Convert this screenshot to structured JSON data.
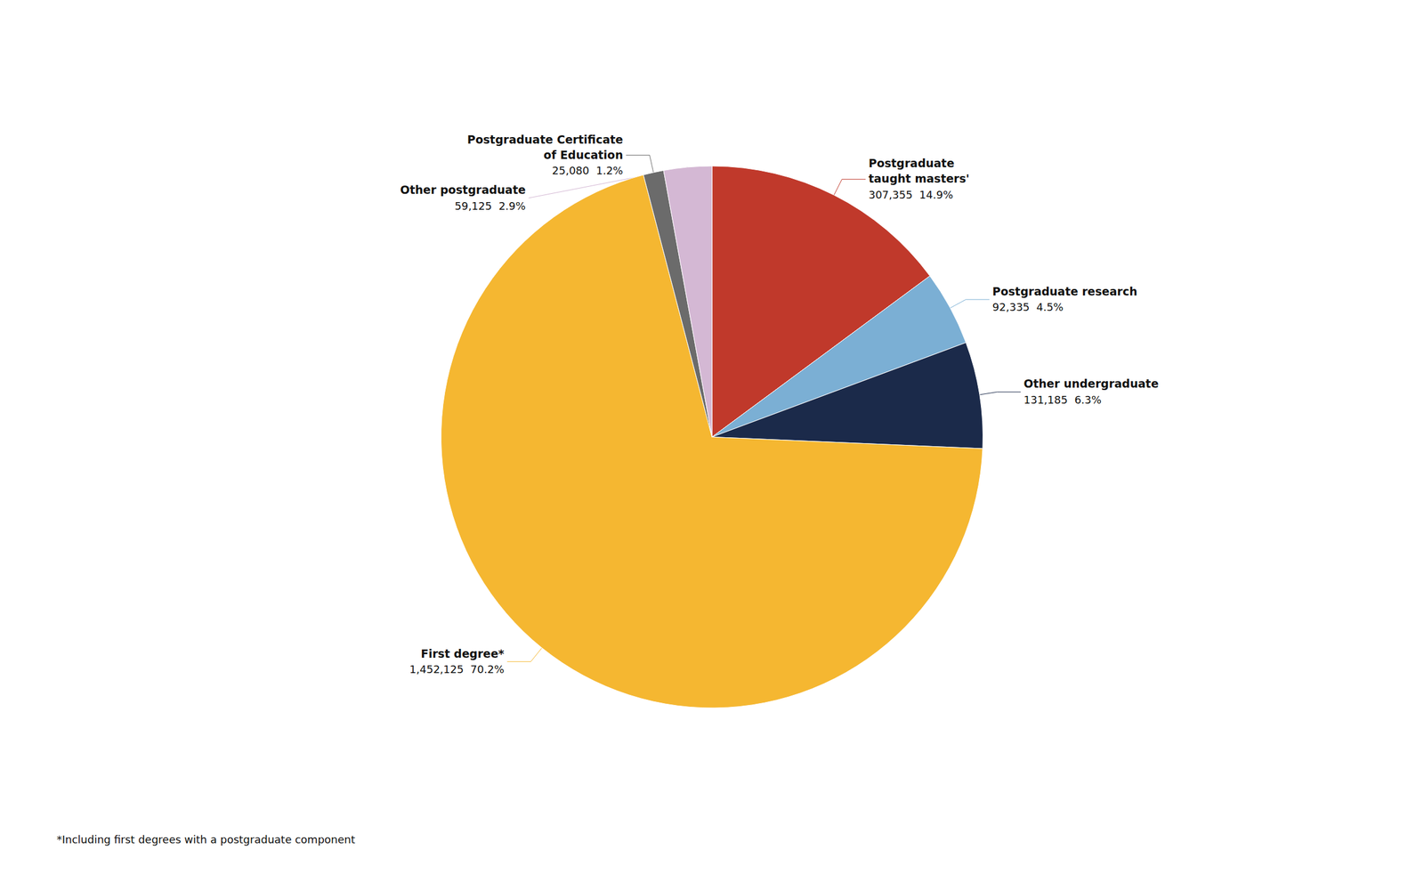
{
  "chart_data": {
    "type": "pie",
    "categories": [
      "Postgraduate\ntaught masters'",
      "Postgraduate research",
      "Other undergraduate",
      "First degree*",
      "Postgraduate Certificate\nof Education",
      "Other postgraduate"
    ],
    "values": [
      307355,
      92335,
      131185,
      1452125,
      25080,
      59125
    ],
    "value_labels": [
      "307,355  14.9%",
      "92,335  4.5%",
      "131,185  6.3%",
      "1,452,125  70.2%",
      "25,080  1.2%",
      "59,125  2.9%"
    ],
    "colors": [
      "#C0392B",
      "#7BAFD4",
      "#1B2A4A",
      "#F5B731",
      "#6B6B6B",
      "#D4B8D4"
    ],
    "data_labels": true,
    "annotations": [
      "*Including first degrees with a postgraduate component"
    ]
  }
}
